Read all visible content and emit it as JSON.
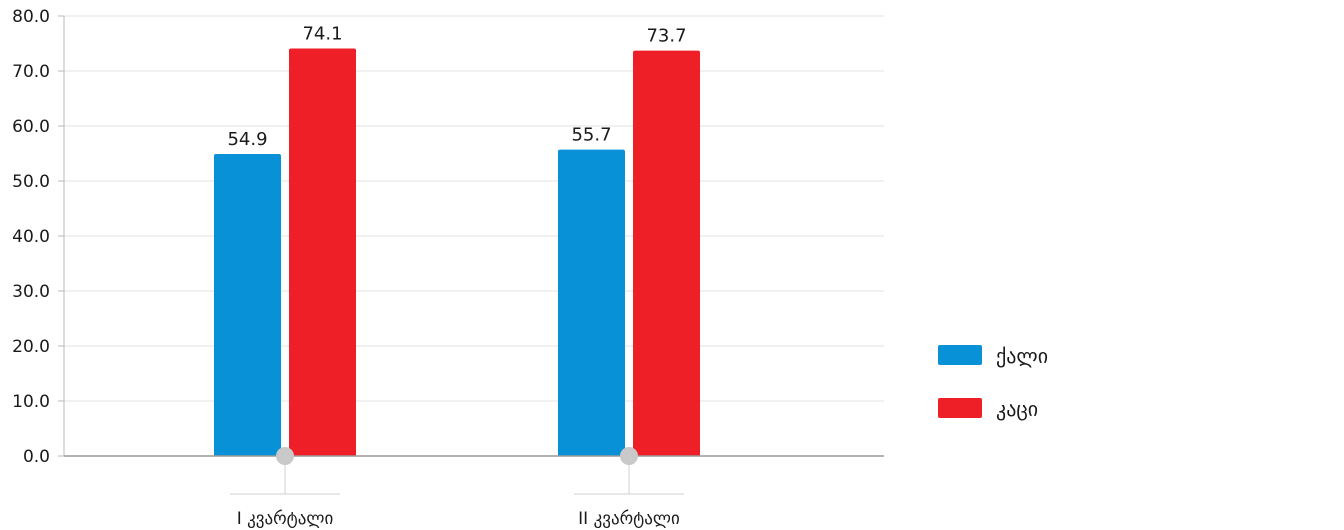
{
  "chart_data": {
    "type": "bar",
    "categories": [
      "I კვარტალი",
      "II კვარტალი"
    ],
    "series": [
      {
        "name": "ქალი",
        "values": [
          54.9,
          55.7
        ],
        "color": "#0891d6"
      },
      {
        "name": "კაცი",
        "values": [
          74.1,
          73.7
        ],
        "color": "#ee1f26"
      }
    ],
    "ylim": [
      0,
      80
    ],
    "yticks": [
      "0.0",
      "10.0",
      "20.0",
      "30.0",
      "40.0",
      "50.0",
      "60.0",
      "70.0",
      "80.0"
    ],
    "grid": true,
    "legend_position": "right",
    "title": "",
    "xlabel": "",
    "ylabel": ""
  }
}
